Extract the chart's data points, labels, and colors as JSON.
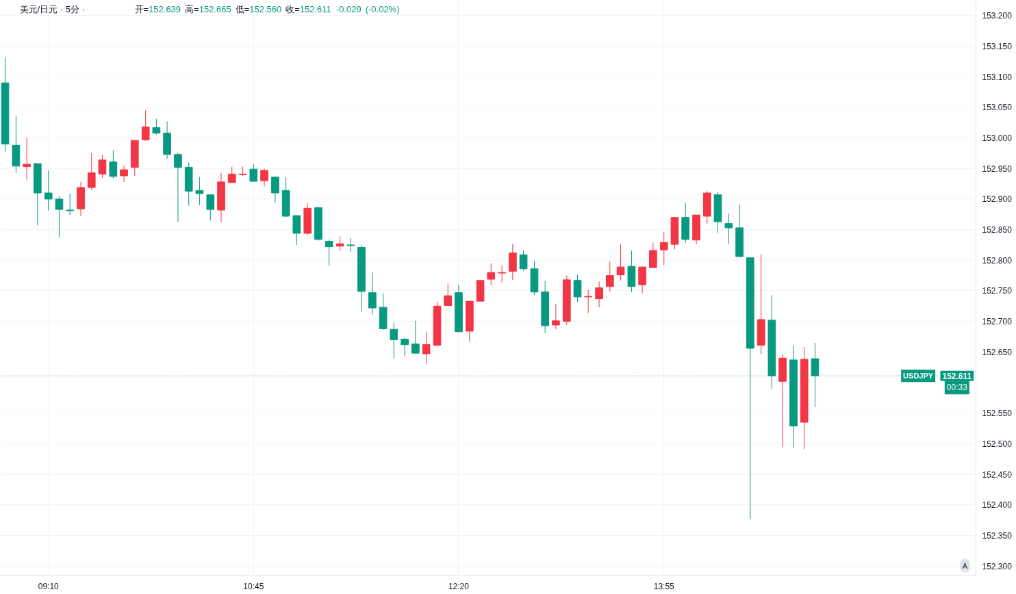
{
  "chart_data": {
    "type": "candlestick",
    "title": "美元/日元 · 5分 ·",
    "subtitle": "开=152.639 高=152.665 低=152.560 收=152.611 -0.029 (-0.02%)",
    "x": [
      8.833,
      8.917,
      9.0,
      9.083,
      9.167,
      9.25,
      9.333,
      9.417,
      9.5,
      9.583,
      9.667,
      9.75,
      9.833,
      9.917,
      10.0,
      10.083,
      10.167,
      10.25,
      10.333,
      10.417,
      10.5,
      10.583,
      10.667,
      10.75,
      10.833,
      10.917,
      11.0,
      11.083,
      11.167,
      11.25,
      11.333,
      11.417,
      11.5,
      11.583,
      11.667,
      11.75,
      11.833,
      11.917,
      12.0,
      12.083,
      12.167,
      12.25,
      12.333,
      12.417,
      12.5,
      12.583,
      12.667,
      12.75,
      12.833,
      12.917,
      13.0,
      13.083,
      13.167,
      13.25,
      13.333,
      13.417,
      13.5,
      13.583,
      13.667,
      13.75,
      13.833,
      13.917,
      14.0,
      14.083,
      14.167,
      14.25,
      14.333,
      14.417,
      14.5,
      14.583,
      14.667,
      14.75,
      14.833,
      14.917,
      15.0,
      15.083
    ],
    "xlim": [
      8.796,
      16.325
    ],
    "xticks": [
      {
        "value": 9.167,
        "label": "09:10"
      },
      {
        "value": 10.75,
        "label": "10:45"
      },
      {
        "value": 12.333,
        "label": "12:20"
      },
      {
        "value": 13.917,
        "label": "13:55"
      }
    ],
    "ohlc": [
      [
        153.09,
        153.132,
        152.977,
        152.99
      ],
      [
        152.988,
        153.036,
        152.943,
        152.954
      ],
      [
        152.953,
        153.0,
        152.932,
        152.957
      ],
      [
        152.958,
        152.958,
        152.857,
        152.91
      ],
      [
        152.91,
        152.947,
        152.881,
        152.9
      ],
      [
        152.9,
        152.905,
        152.838,
        152.883
      ],
      [
        152.882,
        152.909,
        152.874,
        152.881
      ],
      [
        152.884,
        152.928,
        152.872,
        152.919
      ],
      [
        152.919,
        152.975,
        152.915,
        152.943
      ],
      [
        152.941,
        152.972,
        152.935,
        152.964
      ],
      [
        152.961,
        152.98,
        152.934,
        152.937
      ],
      [
        152.938,
        152.955,
        152.928,
        152.948
      ],
      [
        152.952,
        152.997,
        152.938,
        152.996
      ],
      [
        152.997,
        153.045,
        152.995,
        153.018
      ],
      [
        153.017,
        153.031,
        153.005,
        153.008
      ],
      [
        153.008,
        153.027,
        152.966,
        152.973
      ],
      [
        152.973,
        152.976,
        152.863,
        152.952
      ],
      [
        152.952,
        152.96,
        152.889,
        152.913
      ],
      [
        152.914,
        152.936,
        152.89,
        152.909
      ],
      [
        152.907,
        152.907,
        152.865,
        152.883
      ],
      [
        152.882,
        152.943,
        152.862,
        152.928
      ],
      [
        152.927,
        152.953,
        152.927,
        152.941
      ],
      [
        152.94,
        152.953,
        152.938,
        152.941
      ],
      [
        152.949,
        152.957,
        152.929,
        152.929
      ],
      [
        152.93,
        152.95,
        152.921,
        152.947
      ],
      [
        152.936,
        152.937,
        152.894,
        152.91
      ],
      [
        152.914,
        152.936,
        152.87,
        152.872
      ],
      [
        152.873,
        152.873,
        152.825,
        152.844
      ],
      [
        152.844,
        152.893,
        152.842,
        152.885
      ],
      [
        152.886,
        152.888,
        152.832,
        152.834
      ],
      [
        152.831,
        152.834,
        152.791,
        152.822
      ],
      [
        152.823,
        152.839,
        152.815,
        152.827
      ],
      [
        152.825,
        152.836,
        152.813,
        152.824
      ],
      [
        152.821,
        152.825,
        152.716,
        152.749
      ],
      [
        152.747,
        152.78,
        152.711,
        152.722
      ],
      [
        152.723,
        152.746,
        152.686,
        152.688
      ],
      [
        152.687,
        152.698,
        152.64,
        152.67
      ],
      [
        152.671,
        152.673,
        152.643,
        152.662
      ],
      [
        152.663,
        152.701,
        152.647,
        152.648
      ],
      [
        152.647,
        152.682,
        152.631,
        152.662
      ],
      [
        152.661,
        152.732,
        152.66,
        152.725
      ],
      [
        152.726,
        152.762,
        152.725,
        152.742
      ],
      [
        152.747,
        152.76,
        152.683,
        152.683
      ],
      [
        152.684,
        152.733,
        152.667,
        152.733
      ],
      [
        152.733,
        152.767,
        152.733,
        152.767
      ],
      [
        152.769,
        152.795,
        152.76,
        152.78
      ],
      [
        152.779,
        152.792,
        152.763,
        152.78
      ],
      [
        152.782,
        152.827,
        152.768,
        152.812
      ],
      [
        152.809,
        152.816,
        152.783,
        152.786
      ],
      [
        152.786,
        152.799,
        152.743,
        152.748
      ],
      [
        152.748,
        152.766,
        152.681,
        152.693
      ],
      [
        152.694,
        152.729,
        152.687,
        152.701
      ],
      [
        152.7,
        152.775,
        152.694,
        152.768
      ],
      [
        152.767,
        152.776,
        152.732,
        152.74
      ],
      [
        152.74,
        152.751,
        152.714,
        152.741
      ],
      [
        152.737,
        152.765,
        152.723,
        152.755
      ],
      [
        152.757,
        152.798,
        152.749,
        152.775
      ],
      [
        152.776,
        152.826,
        152.767,
        152.789
      ],
      [
        152.79,
        152.816,
        152.748,
        152.757
      ],
      [
        152.76,
        152.789,
        152.746,
        152.789
      ],
      [
        152.788,
        152.829,
        152.788,
        152.816
      ],
      [
        152.817,
        152.846,
        152.792,
        152.829
      ],
      [
        152.826,
        152.871,
        152.818,
        152.87
      ],
      [
        152.87,
        152.894,
        152.828,
        152.834
      ],
      [
        152.833,
        152.874,
        152.826,
        152.874
      ],
      [
        152.872,
        152.913,
        152.86,
        152.91
      ],
      [
        152.907,
        152.912,
        152.845,
        152.863
      ],
      [
        152.86,
        152.876,
        152.826,
        152.853
      ],
      [
        152.853,
        152.891,
        152.806,
        152.806
      ],
      [
        152.804,
        152.804,
        152.377,
        152.656
      ],
      [
        152.661,
        152.81,
        152.647,
        152.703
      ],
      [
        152.702,
        152.743,
        152.59,
        152.611
      ],
      [
        152.602,
        152.646,
        152.495,
        152.64
      ],
      [
        152.637,
        152.66,
        152.493,
        152.529
      ],
      [
        152.535,
        152.658,
        152.491,
        152.638
      ],
      [
        152.639,
        152.665,
        152.56,
        152.611
      ]
    ],
    "colors": [
      "#089981",
      "#089981",
      "#f23645",
      "#089981",
      "#089981",
      "#089981",
      "#089981",
      "#f23645",
      "#f23645",
      "#f23645",
      "#089981",
      "#f23645",
      "#f23645",
      "#f23645",
      "#089981",
      "#089981",
      "#089981",
      "#089981",
      "#089981",
      "#089981",
      "#f23645",
      "#f23645",
      "#f23645",
      "#089981",
      "#f23645",
      "#089981",
      "#089981",
      "#089981",
      "#f23645",
      "#089981",
      "#089981",
      "#f23645",
      "#089981",
      "#089981",
      "#089981",
      "#089981",
      "#089981",
      "#089981",
      "#089981",
      "#f23645",
      "#f23645",
      "#f23645",
      "#089981",
      "#f23645",
      "#f23645",
      "#f23645",
      "#f23645",
      "#f23645",
      "#089981",
      "#089981",
      "#089981",
      "#f23645",
      "#f23645",
      "#089981",
      "#f23645",
      "#f23645",
      "#f23645",
      "#f23645",
      "#089981",
      "#f23645",
      "#f23645",
      "#f23645",
      "#f23645",
      "#089981",
      "#f23645",
      "#f23645",
      "#089981",
      "#089981",
      "#089981",
      "#089981",
      "#f23645",
      "#089981",
      "#f23645",
      "#089981",
      "#f23645",
      "#089981"
    ],
    "ylim": [
      152.285,
      153.225
    ],
    "yticks": [
      {
        "value": 152.3,
        "label": "152.300"
      },
      {
        "value": 152.35,
        "label": "152.350"
      },
      {
        "value": 152.4,
        "label": "152.400"
      },
      {
        "value": 152.45,
        "label": "152.450"
      },
      {
        "value": 152.5,
        "label": "152.500"
      },
      {
        "value": 152.55,
        "label": "152.550"
      },
      {
        "value": 152.65,
        "label": "152.650"
      },
      {
        "value": 152.7,
        "label": "152.700"
      },
      {
        "value": 152.75,
        "label": "152.750"
      },
      {
        "value": 152.8,
        "label": "152.800"
      },
      {
        "value": 152.85,
        "label": "152.850"
      },
      {
        "value": 152.9,
        "label": "152.900"
      },
      {
        "value": 152.95,
        "label": "152.950"
      },
      {
        "value": 153.0,
        "label": "153.000"
      },
      {
        "value": 153.05,
        "label": "153.050"
      },
      {
        "value": 153.1,
        "label": "153.100"
      },
      {
        "value": 153.15,
        "label": "153.150"
      },
      {
        "value": 153.2,
        "label": "153.200"
      }
    ],
    "grid": true,
    "ref_lines": [
      {
        "axis": "y",
        "value": 152.611,
        "label": "USDJPY",
        "color": "#089981",
        "line_style": "dotted"
      }
    ],
    "annotations": [
      {
        "text": "152.611",
        "y": 152.611
      },
      {
        "text": "00:33",
        "y": 152.611
      },
      "A"
    ]
  }
}
